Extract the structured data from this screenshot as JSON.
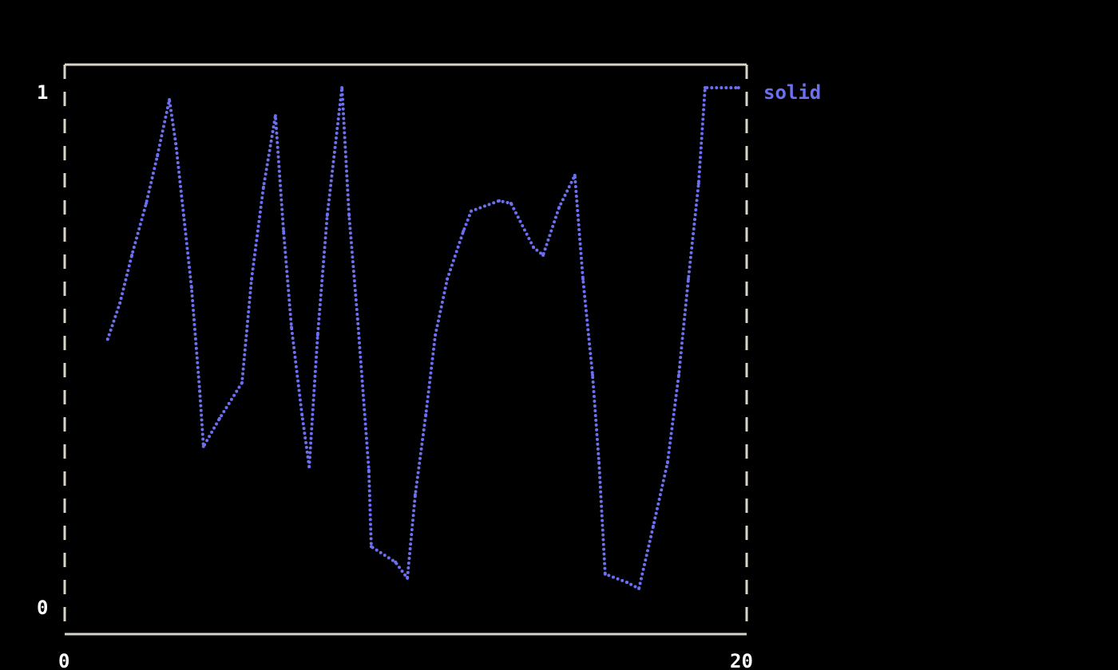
{
  "chart_data": {
    "type": "line",
    "title": "",
    "xlabel": "",
    "ylabel": "",
    "xlim": [
      0,
      20
    ],
    "ylim": [
      0,
      1
    ],
    "x_ticks": [
      "0",
      "20"
    ],
    "y_ticks": [
      "0",
      "1"
    ],
    "grid": false,
    "legend_placement": "right",
    "series": [
      {
        "name": "solid",
        "color": "#6b6ff0",
        "x": [
          1.26,
          1.62,
          1.97,
          2.39,
          2.72,
          3.07,
          3.26,
          3.49,
          3.72,
          3.96,
          4.07,
          4.54,
          5.2,
          5.48,
          5.83,
          6.18,
          6.42,
          6.65,
          6.96,
          7.17,
          7.42,
          7.7,
          8.13,
          8.34,
          8.59,
          8.92,
          8.99,
          9.7,
          10.05,
          10.28,
          10.59,
          10.87,
          11.22,
          11.69,
          11.92,
          12.74,
          13.09,
          13.75,
          14.03,
          14.5,
          14.96,
          15.2,
          15.48,
          15.67,
          15.85,
          16.49,
          16.84,
          17.26,
          17.68,
          18.01,
          18.29,
          18.59,
          18.78,
          19.76
        ],
        "y": [
          0.515,
          0.585,
          0.677,
          0.777,
          0.869,
          0.977,
          0.892,
          0.754,
          0.615,
          0.415,
          0.308,
          0.362,
          0.431,
          0.631,
          0.808,
          0.946,
          0.723,
          0.538,
          0.369,
          0.269,
          0.523,
          0.754,
          1.0,
          0.754,
          0.554,
          0.262,
          0.115,
          0.085,
          0.054,
          0.215,
          0.369,
          0.523,
          0.631,
          0.723,
          0.762,
          0.782,
          0.777,
          0.692,
          0.677,
          0.769,
          0.831,
          0.631,
          0.446,
          0.277,
          0.062,
          0.046,
          0.034,
          0.154,
          0.277,
          0.446,
          0.631,
          0.815,
          1.0,
          1.0
        ]
      }
    ],
    "frame_color": "#d8d4c8"
  }
}
